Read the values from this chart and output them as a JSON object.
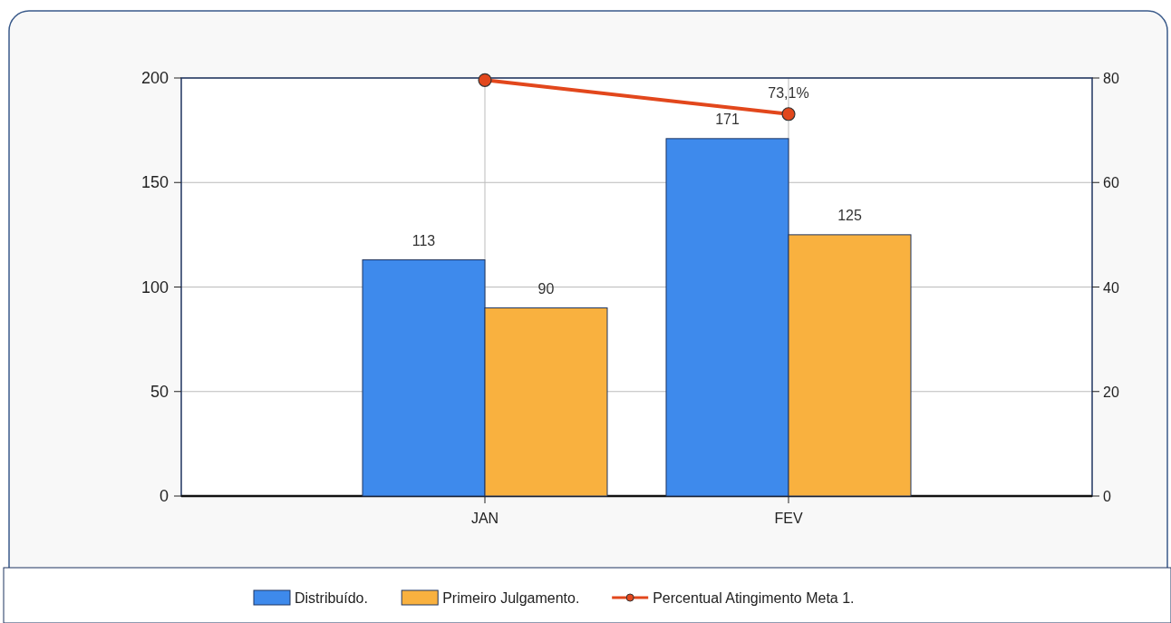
{
  "chart_data": {
    "type": "bar",
    "categories": [
      "JAN",
      "FEV"
    ],
    "series": [
      {
        "name": "Distribuído.",
        "color": "#3e8aec",
        "values": [
          113,
          171
        ],
        "value_labels": [
          "113",
          "171"
        ]
      },
      {
        "name": "Primeiro Julgamento.",
        "color": "#f9b13f",
        "values": [
          90,
          125
        ],
        "value_labels": [
          "90",
          "125"
        ]
      },
      {
        "name": "Percentual Atingimento Meta 1.",
        "type": "line",
        "axis": "y2",
        "color": "#e2471c",
        "values": [
          79.6,
          73.1
        ],
        "value_labels": [
          null,
          "73,1%"
        ],
        "marker": "circle"
      }
    ],
    "ylim": [
      0,
      200
    ],
    "yticks": [
      0,
      50,
      100,
      150,
      200
    ],
    "y2lim": [
      0,
      80
    ],
    "y2ticks": [
      0,
      20,
      40,
      60,
      80
    ],
    "grid": true,
    "legend": "bottom"
  }
}
